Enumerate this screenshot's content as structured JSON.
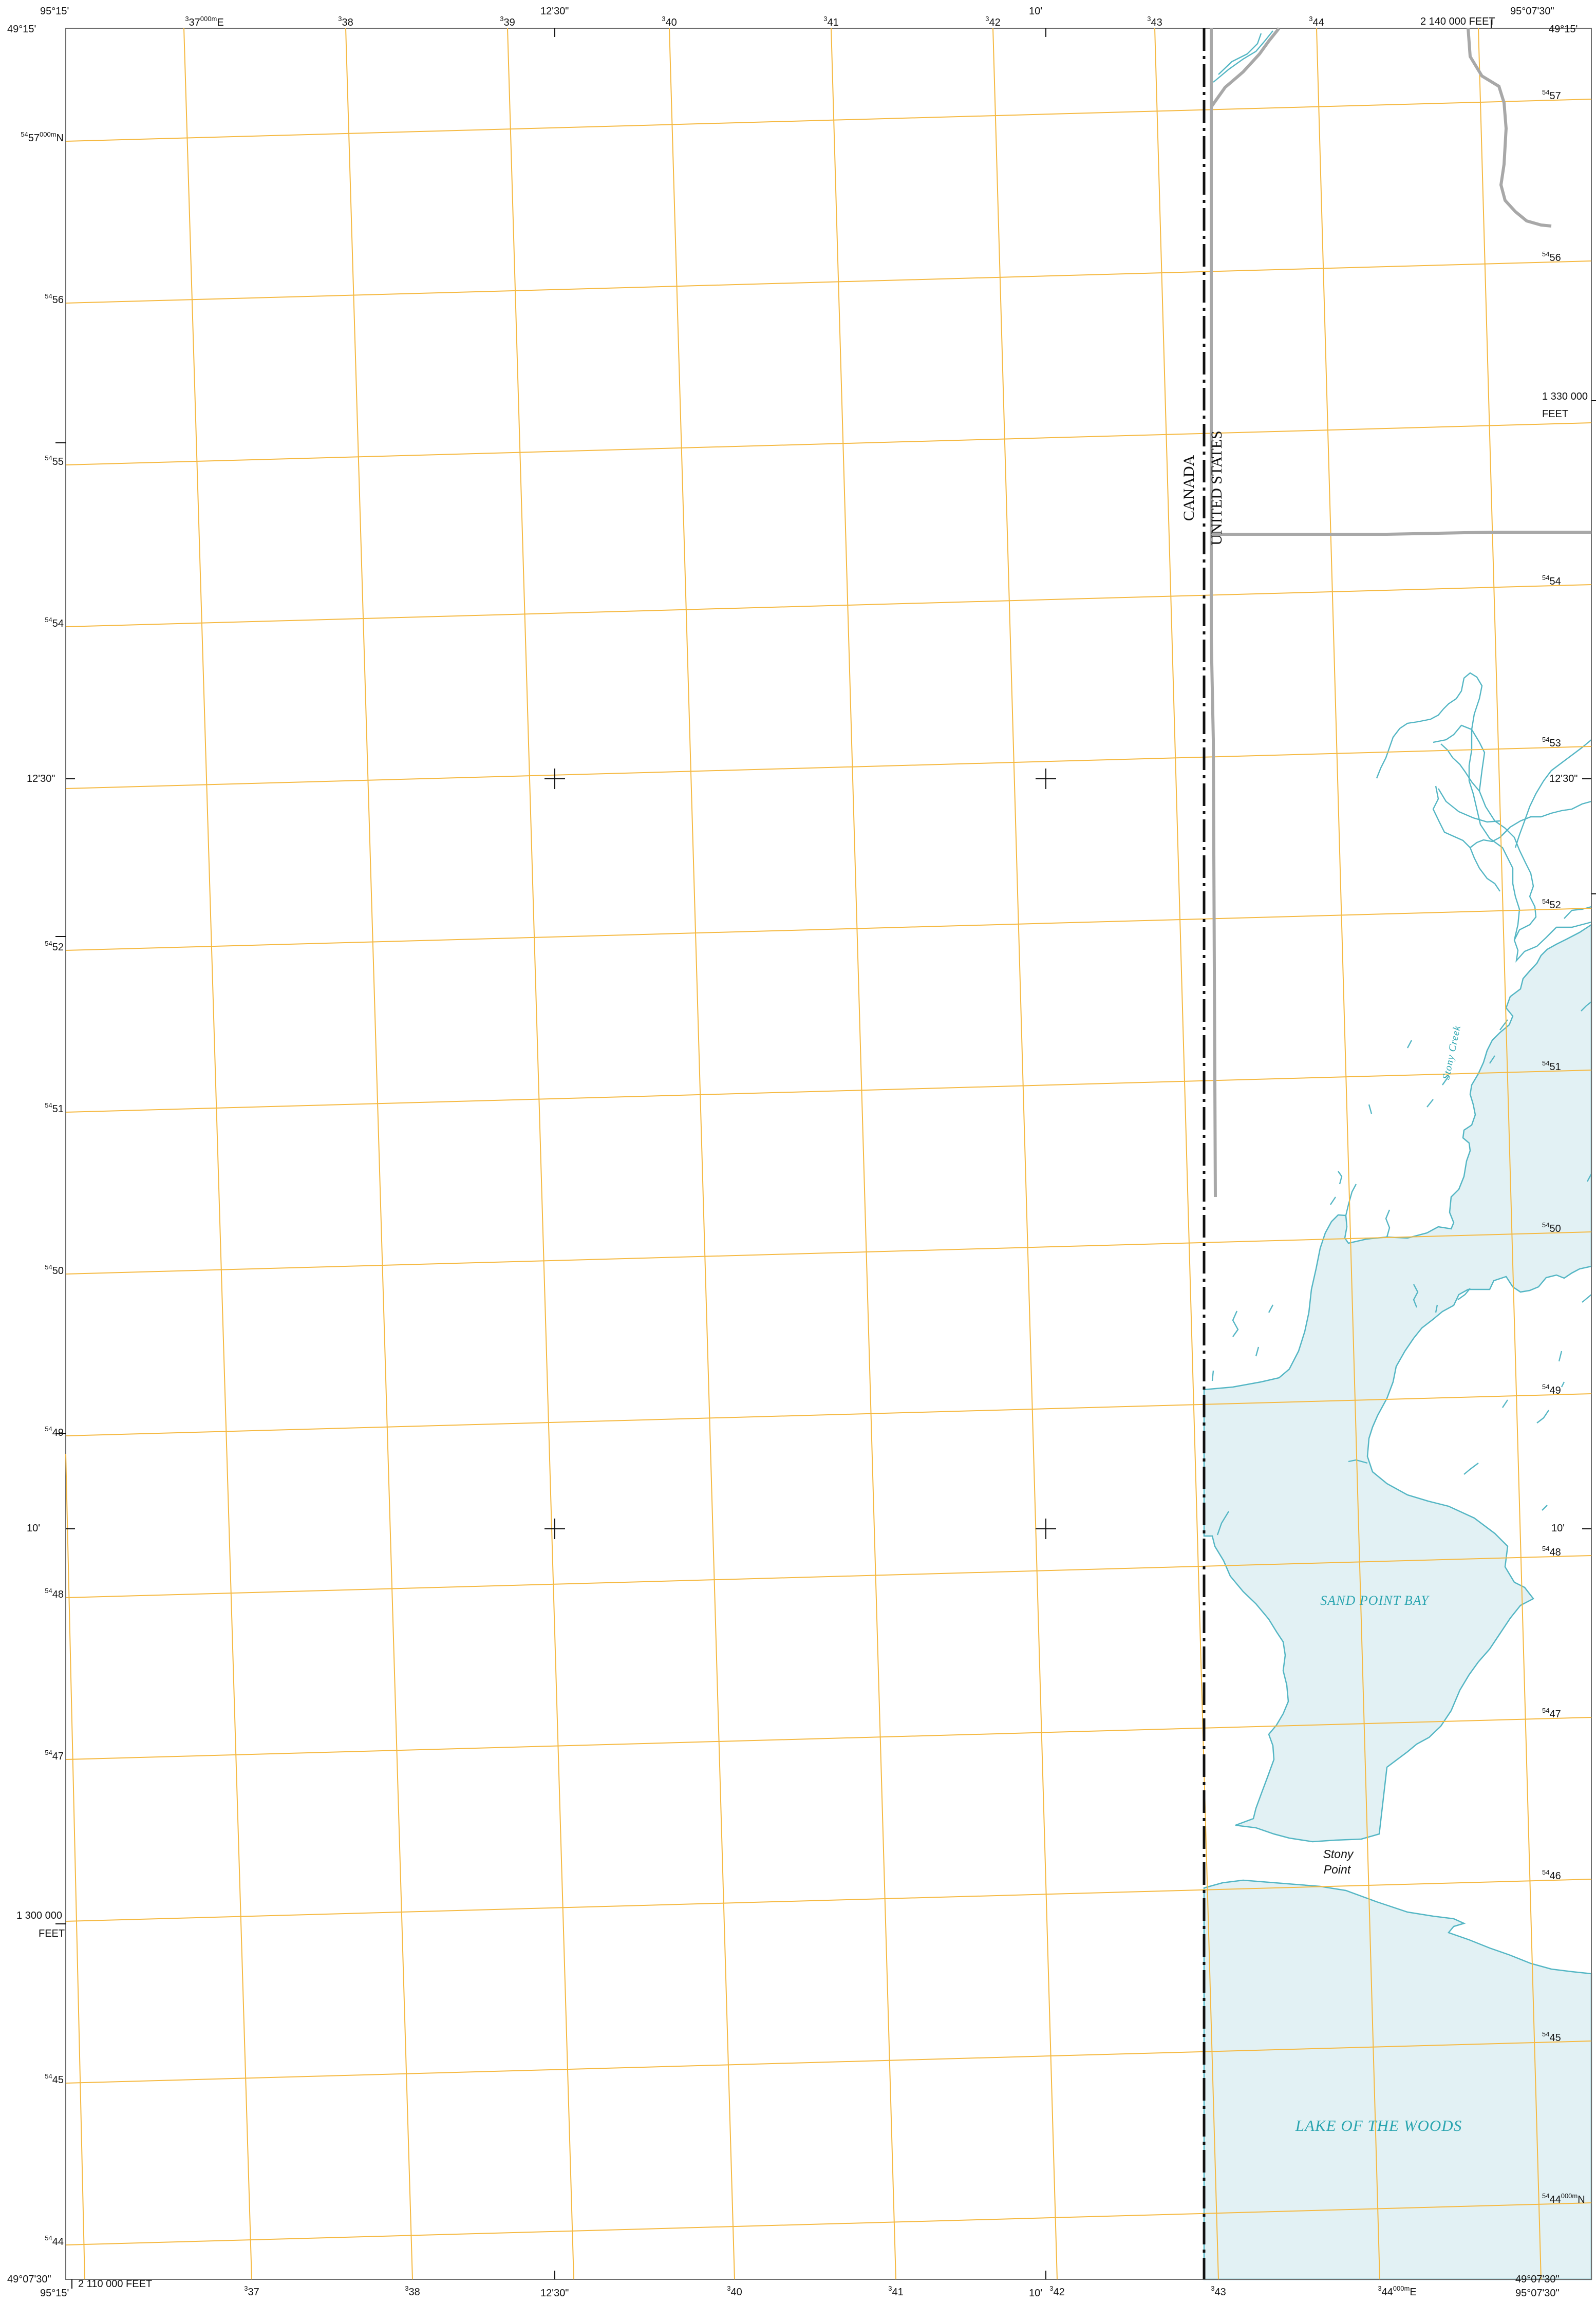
{
  "colors": {
    "background": "#ffffff",
    "grid": "#f5b942",
    "water": "#e2f1f4",
    "water_line": "#54b6c4",
    "water_label": "#2aa5b0",
    "road": "#a8a8a8",
    "boundary": "#111111",
    "neatline": "#6d6d6d"
  },
  "corners": {
    "top_left_lon": "95°15'",
    "top_left_lat": "49°15'",
    "top_right_lon": "95°07'30\"",
    "top_right_lat": "49°15'",
    "bottom_left_lat": "49°07'30\"",
    "bottom_left_lon": "95°15'",
    "bottom_right_lat": "49°07'30\"",
    "bottom_right_lon": "95°07'30\""
  },
  "geo_ticks": {
    "top_1230": "12'30\"",
    "top_10": "10'",
    "bottom_1230": "12'30\"",
    "bottom_10": "10'",
    "left_1230": "12'30\"",
    "left_10": "10'",
    "right_1230": "12'30\"",
    "right_10": "10'"
  },
  "utm_top": [
    {
      "sup": "3",
      "main": "37",
      "suffix": "000m",
      "tail": "E"
    },
    {
      "sup": "3",
      "main": "38"
    },
    {
      "sup": "3",
      "main": "39"
    },
    {
      "sup": "3",
      "main": "40"
    },
    {
      "sup": "3",
      "main": "41"
    },
    {
      "sup": "3",
      "main": "42"
    },
    {
      "sup": "3",
      "main": "43"
    },
    {
      "sup": "3",
      "main": "44"
    }
  ],
  "utm_bottom": [
    {
      "sup": "3",
      "main": "37"
    },
    {
      "sup": "3",
      "main": "38"
    },
    {
      "sup": "3",
      "main": "40"
    },
    {
      "sup": "3",
      "main": "41"
    },
    {
      "sup": "3",
      "main": "42"
    },
    {
      "sup": "3",
      "main": "43"
    },
    {
      "sup": "3",
      "main": "44",
      "suffix": "000m",
      "tail": "E"
    }
  ],
  "utm_left": [
    {
      "sup": "54",
      "main": "57",
      "suffix": "000m",
      "tail": "N"
    },
    {
      "sup": "54",
      "main": "56"
    },
    {
      "sup": "54",
      "main": "55"
    },
    {
      "sup": "54",
      "main": "54"
    },
    {
      "sup": "54",
      "main": "52"
    },
    {
      "sup": "54",
      "main": "51"
    },
    {
      "sup": "54",
      "main": "50"
    },
    {
      "sup": "54",
      "main": "49"
    },
    {
      "sup": "54",
      "main": "48"
    },
    {
      "sup": "54",
      "main": "47"
    },
    {
      "sup": "54",
      "main": "45"
    },
    {
      "sup": "54",
      "main": "44"
    }
  ],
  "utm_right": [
    {
      "sup": "54",
      "main": "57"
    },
    {
      "sup": "54",
      "main": "56"
    },
    {
      "sup": "54",
      "main": "54"
    },
    {
      "sup": "54",
      "main": "53"
    },
    {
      "sup": "54",
      "main": "52"
    },
    {
      "sup": "54",
      "main": "51"
    },
    {
      "sup": "54",
      "main": "50"
    },
    {
      "sup": "54",
      "main": "49"
    },
    {
      "sup": "54",
      "main": "48"
    },
    {
      "sup": "54",
      "main": "47"
    },
    {
      "sup": "54",
      "main": "46"
    },
    {
      "sup": "54",
      "main": "45"
    },
    {
      "sup": "54",
      "main": "44",
      "suffix": "000m",
      "tail": "N"
    }
  ],
  "state_plane": {
    "top_right": "2 140 000 FEET",
    "bottom_left": "2 110 000 FEET",
    "right_value": "1 330 000",
    "right_unit": "FEET",
    "left_value": "1 300 000",
    "left_unit": "FEET"
  },
  "features": {
    "country_west": "CANADA",
    "country_east": "UNITED STATES",
    "bay": "SAND POINT BAY",
    "lake": "LAKE OF THE WOODS",
    "creek": "Stony Creek",
    "point_line1": "Stony",
    "point_line2": "Point"
  }
}
